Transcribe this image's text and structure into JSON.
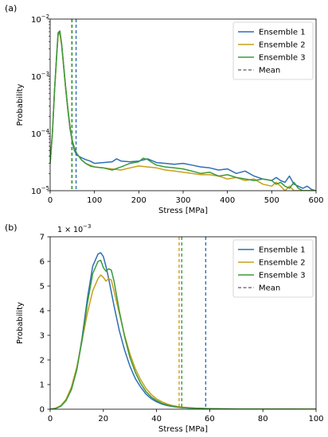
{
  "chart_data": [
    {
      "panel_label": "(a)",
      "type": "line",
      "yscale": "log",
      "xlabel": "Stress [MPa]",
      "ylabel": "Probability",
      "xlim": [
        0,
        600
      ],
      "ylim": [
        1e-05,
        0.01
      ],
      "x_ticks": [
        0,
        100,
        200,
        300,
        400,
        500,
        600
      ],
      "y_ticks": [
        {
          "value": 1e-05,
          "label": "10",
          "exp": "−5"
        },
        {
          "value": 0.0001,
          "label": "10",
          "exp": "−4"
        },
        {
          "value": 0.001,
          "label": "10",
          "exp": "−3"
        },
        {
          "value": 0.01,
          "label": "10",
          "exp": "−2"
        }
      ],
      "legend_position": "top-right",
      "legend": [
        "Ensemble 1",
        "Ensemble 2",
        "Ensemble 3",
        "Mean"
      ],
      "series": [
        {
          "name": "Ensemble 1",
          "color": "#2f6eb5",
          "x": [
            0,
            5,
            10,
            15,
            18,
            22,
            26,
            30,
            35,
            40,
            45,
            50,
            55,
            60,
            70,
            80,
            90,
            100,
            120,
            140,
            150,
            160,
            180,
            200,
            220,
            240,
            260,
            280,
            300,
            320,
            340,
            360,
            380,
            400,
            420,
            440,
            460,
            480,
            500,
            510,
            520,
            530,
            540,
            550,
            560,
            570,
            580,
            590,
            600
          ],
          "y": [
            3e-05,
            0.0001,
            0.0006,
            0.0025,
            0.0055,
            0.0059,
            0.0035,
            0.0016,
            0.0006,
            0.00025,
            0.00012,
            7e-05,
            5e-05,
            4.2e-05,
            3.8e-05,
            3.5e-05,
            3.3e-05,
            3e-05,
            3.1e-05,
            3.2e-05,
            3.6e-05,
            3.3e-05,
            3.2e-05,
            3.3e-05,
            3.6e-05,
            3.1e-05,
            3e-05,
            2.9e-05,
            3e-05,
            2.8e-05,
            2.6e-05,
            2.5e-05,
            2.3e-05,
            2.4e-05,
            2e-05,
            2.2e-05,
            1.8e-05,
            1.6e-05,
            1.5e-05,
            1.7e-05,
            1.5e-05,
            1.4e-05,
            1.8e-05,
            1.3e-05,
            1.2e-05,
            1.1e-05,
            1.2e-05,
            1.05e-05,
            1e-05
          ]
        },
        {
          "name": "Ensemble 2",
          "color": "#c8a01a",
          "x": [
            0,
            5,
            10,
            15,
            18,
            22,
            26,
            30,
            35,
            40,
            45,
            50,
            55,
            60,
            70,
            80,
            90,
            100,
            120,
            140,
            160,
            180,
            200,
            220,
            240,
            260,
            280,
            300,
            320,
            340,
            360,
            380,
            400,
            420,
            440,
            460,
            480,
            500,
            510,
            520,
            530,
            540,
            550,
            560,
            570,
            580,
            590,
            600
          ],
          "y": [
            3e-05,
            0.0001,
            0.0006,
            0.0023,
            0.0052,
            0.0056,
            0.0034,
            0.0016,
            0.0006,
            0.00026,
            0.00013,
            7.5e-05,
            5.5e-05,
            4.5e-05,
            3.5e-05,
            3e-05,
            2.8e-05,
            2.6e-05,
            2.5e-05,
            2.4e-05,
            2.3e-05,
            2.5e-05,
            2.7e-05,
            2.6e-05,
            2.5e-05,
            2.3e-05,
            2.2e-05,
            2.1e-05,
            2e-05,
            1.9e-05,
            1.9e-05,
            1.8e-05,
            1.6e-05,
            1.7e-05,
            1.5e-05,
            1.6e-05,
            1.3e-05,
            1.2e-05,
            1.4e-05,
            1.2e-05,
            1e-05,
            1.2e-05,
            1e-05,
            1e-05,
            1e-05,
            1e-05,
            1e-05,
            1e-05
          ]
        },
        {
          "name": "Ensemble 3",
          "color": "#3b9a3b",
          "x": [
            0,
            5,
            10,
            15,
            18,
            22,
            26,
            30,
            35,
            40,
            45,
            50,
            55,
            60,
            70,
            80,
            90,
            100,
            120,
            140,
            160,
            180,
            200,
            210,
            220,
            230,
            240,
            260,
            280,
            300,
            320,
            340,
            360,
            380,
            400,
            420,
            440,
            460,
            480,
            500,
            510,
            520,
            530,
            540,
            550,
            560,
            570,
            580,
            590,
            600
          ],
          "y": [
            3e-05,
            0.0001,
            0.0006,
            0.0025,
            0.0058,
            0.0062,
            0.0036,
            0.0017,
            0.00065,
            0.00027,
            0.00013,
            7.5e-05,
            5.5e-05,
            4.5e-05,
            3.5e-05,
            3e-05,
            2.7e-05,
            2.6e-05,
            2.5e-05,
            2.3e-05,
            2.6e-05,
            3e-05,
            3.2e-05,
            3.7e-05,
            3.5e-05,
            3.1e-05,
            2.8e-05,
            2.6e-05,
            2.5e-05,
            2.4e-05,
            2.2e-05,
            2e-05,
            2.1e-05,
            1.8e-05,
            1.9e-05,
            1.7e-05,
            1.6e-05,
            1.5e-05,
            1.6e-05,
            1.5e-05,
            1.3e-05,
            1.4e-05,
            1.2e-05,
            1.1e-05,
            1.4e-05,
            1.1e-05,
            1e-05,
            1e-05,
            1e-05,
            1e-05
          ]
        }
      ],
      "mean_lines": [
        {
          "name": "Ensemble 1",
          "x": 58.5,
          "color": "#2f6eb5"
        },
        {
          "name": "Ensemble 2",
          "x": 48.5,
          "color": "#c8a01a"
        },
        {
          "name": "Ensemble 3",
          "x": 49.5,
          "color": "#3b9a3b"
        }
      ]
    },
    {
      "panel_label": "(b)",
      "type": "line",
      "yscale": "linear",
      "scale_label": "1 × 10",
      "scale_exp": "−3",
      "xlabel": "Stress [MPa]",
      "ylabel": "Probability",
      "xlim": [
        0,
        100
      ],
      "ylim": [
        0,
        7
      ],
      "x_ticks": [
        0,
        20,
        40,
        60,
        80,
        100
      ],
      "y_ticks": [
        0,
        1,
        2,
        3,
        4,
        5,
        6,
        7
      ],
      "legend_position": "top-right",
      "legend": [
        "Ensemble 1",
        "Ensemble 2",
        "Ensemble 3",
        "Mean"
      ],
      "series": [
        {
          "name": "Ensemble 1",
          "color": "#2f6eb5",
          "x": [
            0,
            2,
            4,
            6,
            8,
            10,
            12,
            14,
            16,
            18,
            19,
            20,
            21,
            22,
            24,
            26,
            28,
            30,
            32,
            34,
            36,
            38,
            40,
            42,
            44,
            46,
            48,
            50,
            55,
            60,
            65,
            70,
            80,
            90,
            100
          ],
          "y": [
            0,
            0.03,
            0.12,
            0.35,
            0.8,
            1.6,
            2.9,
            4.5,
            5.8,
            6.3,
            6.35,
            6.2,
            5.8,
            5.3,
            4.2,
            3.2,
            2.4,
            1.75,
            1.25,
            0.9,
            0.62,
            0.43,
            0.3,
            0.21,
            0.15,
            0.11,
            0.08,
            0.06,
            0.035,
            0.02,
            0.012,
            0.008,
            0.004,
            0.002,
            0.001
          ]
        },
        {
          "name": "Ensemble 2",
          "color": "#c8a01a",
          "x": [
            0,
            2,
            4,
            6,
            8,
            10,
            12,
            14,
            16,
            18,
            19,
            20,
            21,
            22,
            23,
            24,
            26,
            28,
            30,
            32,
            34,
            36,
            38,
            40,
            42,
            44,
            46,
            48,
            50,
            55,
            60,
            65,
            70,
            80,
            90,
            100
          ],
          "y": [
            0,
            0.04,
            0.15,
            0.4,
            0.9,
            1.7,
            2.8,
            3.9,
            4.8,
            5.3,
            5.45,
            5.35,
            5.2,
            5.3,
            5.25,
            4.8,
            3.9,
            3.0,
            2.25,
            1.65,
            1.2,
            0.85,
            0.6,
            0.42,
            0.3,
            0.21,
            0.15,
            0.11,
            0.08,
            0.04,
            0.022,
            0.013,
            0.008,
            0.004,
            0.002,
            0.001
          ]
        },
        {
          "name": "Ensemble 3",
          "color": "#3b9a3b",
          "x": [
            0,
            2,
            4,
            6,
            8,
            10,
            12,
            14,
            16,
            18,
            19,
            20,
            21,
            22,
            23,
            24,
            26,
            28,
            30,
            32,
            34,
            36,
            38,
            40,
            42,
            44,
            46,
            48,
            50,
            55,
            60,
            65,
            70,
            80,
            90,
            100
          ],
          "y": [
            0,
            0.03,
            0.12,
            0.35,
            0.8,
            1.6,
            2.8,
            4.3,
            5.5,
            6.0,
            6.05,
            5.75,
            5.6,
            5.7,
            5.65,
            5.2,
            4.0,
            2.95,
            2.1,
            1.5,
            1.05,
            0.72,
            0.5,
            0.35,
            0.24,
            0.17,
            0.12,
            0.085,
            0.06,
            0.035,
            0.02,
            0.012,
            0.008,
            0.004,
            0.002,
            0.001
          ]
        }
      ],
      "mean_lines": [
        {
          "name": "Ensemble 1",
          "x": 58.5,
          "color": "#2f6eb5"
        },
        {
          "name": "Ensemble 2",
          "x": 48.5,
          "color": "#c8a01a"
        },
        {
          "name": "Ensemble 3",
          "x": 49.5,
          "color": "#3b9a3b"
        }
      ]
    }
  ]
}
